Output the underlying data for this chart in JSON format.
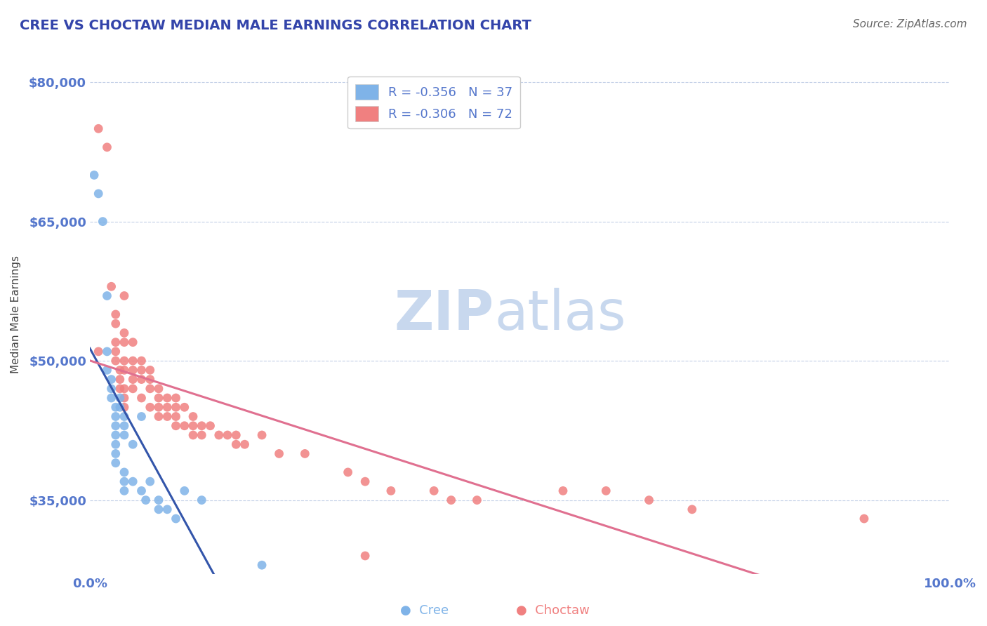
{
  "title": "CREE VS CHOCTAW MEDIAN MALE EARNINGS CORRELATION CHART",
  "source": "Source: ZipAtlas.com",
  "ylabel": "Median Male Earnings",
  "xlim": [
    0.0,
    1.0
  ],
  "ylim": [
    27000,
    83000
  ],
  "yticks": [
    35000,
    50000,
    65000,
    80000
  ],
  "ytick_labels": [
    "$35,000",
    "$50,000",
    "$65,000",
    "$80,000"
  ],
  "xtick_labels": [
    "0.0%",
    "100.0%"
  ],
  "title_color": "#3344aa",
  "axis_color": "#5577cc",
  "legend_r1": "R = -0.356",
  "legend_n1": "N = 37",
  "legend_r2": "R = -0.306",
  "legend_n2": "N = 72",
  "cree_color": "#7fb3e8",
  "choctaw_color": "#f08080",
  "cree_line_color": "#3355aa",
  "choctaw_line_color": "#e07090",
  "watermark_zip": "ZIP",
  "watermark_atlas": "atlas",
  "watermark_color": "#c8d8ee",
  "cree_x": [
    0.005,
    0.01,
    0.015,
    0.02,
    0.02,
    0.02,
    0.025,
    0.025,
    0.025,
    0.03,
    0.03,
    0.03,
    0.03,
    0.03,
    0.03,
    0.03,
    0.035,
    0.035,
    0.04,
    0.04,
    0.04,
    0.04,
    0.04,
    0.04,
    0.05,
    0.05,
    0.06,
    0.06,
    0.065,
    0.07,
    0.08,
    0.08,
    0.09,
    0.1,
    0.11,
    0.13,
    0.2
  ],
  "cree_y": [
    70000,
    68000,
    65000,
    57000,
    51000,
    49000,
    48000,
    47000,
    46000,
    45000,
    44000,
    43000,
    42000,
    41000,
    40000,
    39000,
    46000,
    45000,
    44000,
    43000,
    42000,
    38000,
    37000,
    36000,
    41000,
    37000,
    44000,
    36000,
    35000,
    37000,
    35000,
    34000,
    34000,
    33000,
    36000,
    35000,
    28000
  ],
  "choctaw_x": [
    0.01,
    0.01,
    0.02,
    0.025,
    0.03,
    0.03,
    0.03,
    0.03,
    0.03,
    0.035,
    0.035,
    0.035,
    0.04,
    0.04,
    0.04,
    0.04,
    0.04,
    0.04,
    0.04,
    0.04,
    0.05,
    0.05,
    0.05,
    0.05,
    0.05,
    0.06,
    0.06,
    0.06,
    0.06,
    0.07,
    0.07,
    0.07,
    0.07,
    0.08,
    0.08,
    0.08,
    0.08,
    0.09,
    0.09,
    0.09,
    0.1,
    0.1,
    0.1,
    0.1,
    0.11,
    0.11,
    0.12,
    0.12,
    0.12,
    0.13,
    0.13,
    0.14,
    0.15,
    0.16,
    0.17,
    0.17,
    0.18,
    0.2,
    0.22,
    0.25,
    0.3,
    0.32,
    0.35,
    0.4,
    0.42,
    0.45,
    0.55,
    0.6,
    0.65,
    0.7,
    0.9,
    0.32
  ],
  "choctaw_y": [
    75000,
    51000,
    73000,
    58000,
    55000,
    54000,
    52000,
    51000,
    50000,
    49000,
    48000,
    47000,
    57000,
    53000,
    52000,
    50000,
    49000,
    47000,
    46000,
    45000,
    52000,
    50000,
    49000,
    48000,
    47000,
    50000,
    49000,
    48000,
    46000,
    49000,
    48000,
    47000,
    45000,
    47000,
    46000,
    45000,
    44000,
    46000,
    45000,
    44000,
    46000,
    45000,
    44000,
    43000,
    45000,
    43000,
    44000,
    43000,
    42000,
    43000,
    42000,
    43000,
    42000,
    42000,
    42000,
    41000,
    41000,
    42000,
    40000,
    40000,
    38000,
    37000,
    36000,
    36000,
    35000,
    35000,
    36000,
    36000,
    35000,
    34000,
    33000,
    29000
  ]
}
